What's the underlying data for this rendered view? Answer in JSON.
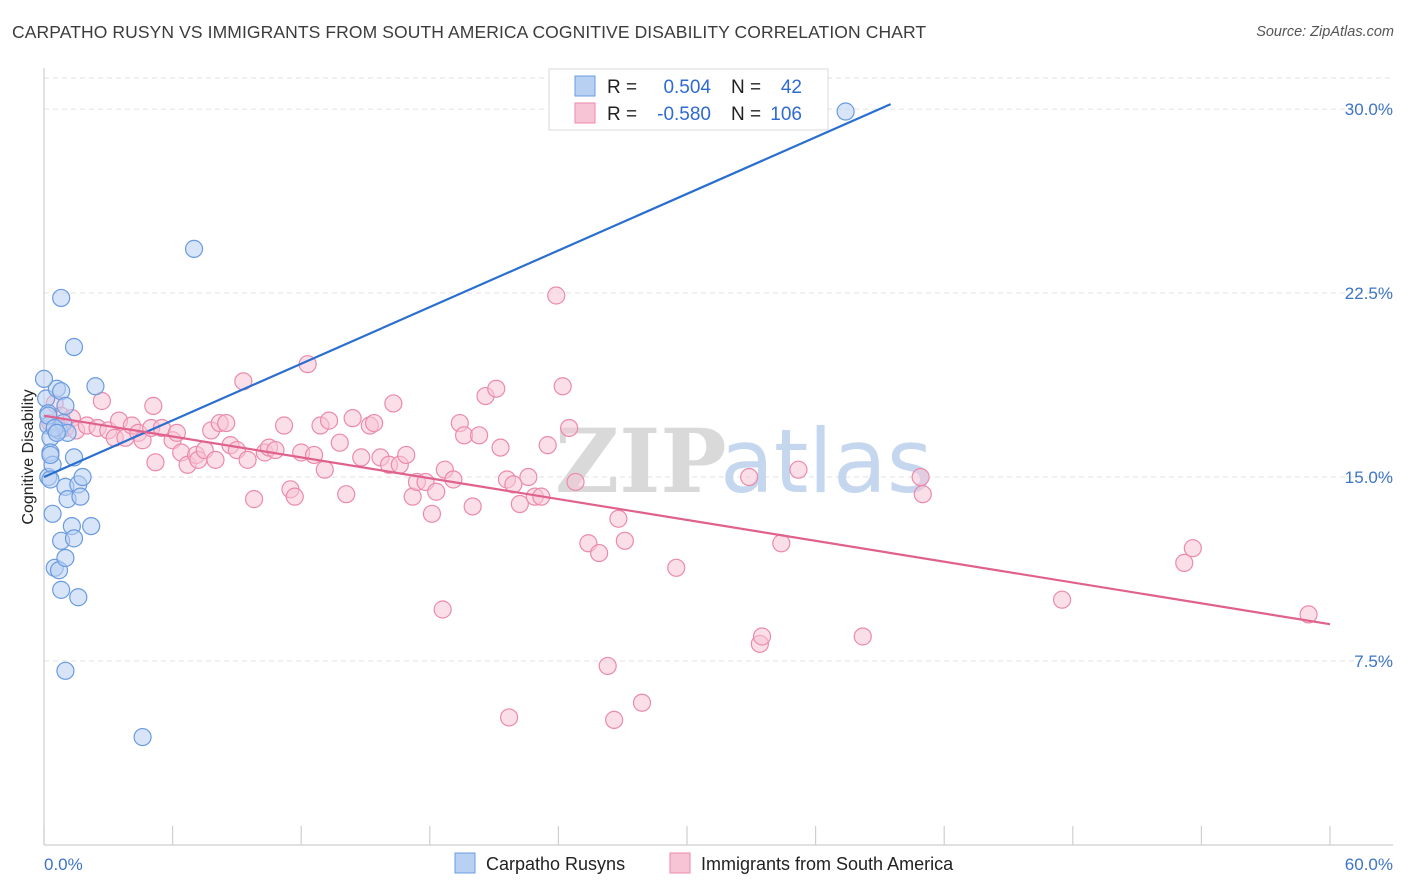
{
  "chart_data": {
    "type": "scatter",
    "title": "CARPATHO RUSYN VS IMMIGRANTS FROM SOUTH AMERICA COGNITIVE DISABILITY CORRELATION CHART",
    "source": "Source: ZipAtlas.com",
    "ylabel": "Cognitive Disability",
    "xlabel": "",
    "xlim": [
      0,
      60
    ],
    "ylim": [
      0,
      32
    ],
    "y_ticks": [
      {
        "value": 7.5,
        "label": "7.5%"
      },
      {
        "value": 15.0,
        "label": "15.0%"
      },
      {
        "value": 22.5,
        "label": "22.5%"
      },
      {
        "value": 30.0,
        "label": "30.0%"
      }
    ],
    "x_tick_values": [
      0,
      6,
      12,
      18,
      24,
      30,
      36,
      42,
      48,
      54,
      60
    ],
    "x_tick_labels": {
      "min": "0.0%",
      "max": "60.0%"
    },
    "watermark": {
      "zip": "ZIP",
      "atlas": "atlas"
    },
    "legend": {
      "r_label": "R =",
      "n_label": "N =",
      "entries": [
        {
          "r": "0.504",
          "n": "42"
        },
        {
          "r": "-0.580",
          "n": "106"
        }
      ]
    },
    "series": [
      {
        "name": "Carpatho Rusyns",
        "color": "#6a9be0",
        "fill": "#b8d0f2",
        "line_color": "#2a6fcf",
        "trend": {
          "x0": 0,
          "y0": 15.0,
          "x1": 39.5,
          "y1": 30.2
        },
        "points": [
          [
            0.1,
            18.2
          ],
          [
            0.2,
            17.6
          ],
          [
            0.2,
            17.1
          ],
          [
            0.3,
            16.6
          ],
          [
            0.2,
            15.0
          ],
          [
            0.3,
            16.0
          ],
          [
            0.4,
            15.5
          ],
          [
            0.6,
            18.6
          ],
          [
            0.7,
            16.9
          ],
          [
            0.8,
            18.5
          ],
          [
            0.9,
            17.2
          ],
          [
            1.0,
            17.9
          ],
          [
            1.1,
            16.8
          ],
          [
            0.3,
            14.9
          ],
          [
            1.0,
            14.6
          ],
          [
            1.4,
            15.8
          ],
          [
            1.1,
            14.1
          ],
          [
            1.6,
            14.7
          ],
          [
            1.7,
            14.2
          ],
          [
            1.8,
            15.0
          ],
          [
            0.4,
            13.5
          ],
          [
            0.8,
            12.4
          ],
          [
            1.3,
            13.0
          ],
          [
            1.4,
            12.5
          ],
          [
            2.2,
            13.0
          ],
          [
            0.5,
            11.3
          ],
          [
            0.7,
            11.2
          ],
          [
            1.0,
            11.7
          ],
          [
            0.8,
            10.4
          ],
          [
            1.6,
            10.1
          ],
          [
            1.0,
            7.1
          ],
          [
            0.8,
            22.3
          ],
          [
            1.4,
            20.3
          ],
          [
            2.4,
            18.7
          ],
          [
            7.0,
            24.3
          ],
          [
            4.6,
            4.4
          ],
          [
            37.4,
            29.9
          ],
          [
            0.0,
            19.0
          ],
          [
            0.2,
            17.5
          ],
          [
            0.5,
            17.0
          ],
          [
            0.3,
            15.9
          ],
          [
            0.6,
            16.8
          ]
        ]
      },
      {
        "name": "Immigrants from South America",
        "color": "#ec8aac",
        "fill": "#f7c4d6",
        "line_color": "#e0608e",
        "trend": {
          "x0": 0,
          "y0": 17.5,
          "x1": 60,
          "y1": 9.0
        },
        "points": [
          [
            0.3,
            17.2
          ],
          [
            0.5,
            18.0
          ],
          [
            0.8,
            17.5
          ],
          [
            1.0,
            17.0
          ],
          [
            1.3,
            17.4
          ],
          [
            1.5,
            16.9
          ],
          [
            2.0,
            17.1
          ],
          [
            2.5,
            17.0
          ],
          [
            2.7,
            18.1
          ],
          [
            3.0,
            16.9
          ],
          [
            3.3,
            16.6
          ],
          [
            3.5,
            17.3
          ],
          [
            3.8,
            16.6
          ],
          [
            4.1,
            17.1
          ],
          [
            4.4,
            16.8
          ],
          [
            4.6,
            16.5
          ],
          [
            5.0,
            17.0
          ],
          [
            5.1,
            17.9
          ],
          [
            5.2,
            15.6
          ],
          [
            5.5,
            17.0
          ],
          [
            6.0,
            16.5
          ],
          [
            6.2,
            16.8
          ],
          [
            6.4,
            16.0
          ],
          [
            6.7,
            15.5
          ],
          [
            7.1,
            15.9
          ],
          [
            7.2,
            15.7
          ],
          [
            7.5,
            16.1
          ],
          [
            7.8,
            16.9
          ],
          [
            8.0,
            15.7
          ],
          [
            8.2,
            17.2
          ],
          [
            8.5,
            17.2
          ],
          [
            8.7,
            16.3
          ],
          [
            9.0,
            16.1
          ],
          [
            9.3,
            18.9
          ],
          [
            9.5,
            15.7
          ],
          [
            9.8,
            14.1
          ],
          [
            10.3,
            16.0
          ],
          [
            10.5,
            16.2
          ],
          [
            10.8,
            16.1
          ],
          [
            11.2,
            17.1
          ],
          [
            11.5,
            14.5
          ],
          [
            11.7,
            14.2
          ],
          [
            12.0,
            16.0
          ],
          [
            12.3,
            19.6
          ],
          [
            12.6,
            15.9
          ],
          [
            12.9,
            17.1
          ],
          [
            13.1,
            15.3
          ],
          [
            13.3,
            17.3
          ],
          [
            13.8,
            16.4
          ],
          [
            14.1,
            14.3
          ],
          [
            14.4,
            17.4
          ],
          [
            14.8,
            15.8
          ],
          [
            15.2,
            17.1
          ],
          [
            15.4,
            17.2
          ],
          [
            15.7,
            15.8
          ],
          [
            16.1,
            15.5
          ],
          [
            16.3,
            18.0
          ],
          [
            16.6,
            15.5
          ],
          [
            16.9,
            15.9
          ],
          [
            17.2,
            14.2
          ],
          [
            17.4,
            14.8
          ],
          [
            17.8,
            14.8
          ],
          [
            18.1,
            13.5
          ],
          [
            18.3,
            14.4
          ],
          [
            18.6,
            9.6
          ],
          [
            18.7,
            15.3
          ],
          [
            19.1,
            14.9
          ],
          [
            19.4,
            17.2
          ],
          [
            19.6,
            16.7
          ],
          [
            20.0,
            13.8
          ],
          [
            20.3,
            16.7
          ],
          [
            20.6,
            18.3
          ],
          [
            21.1,
            18.6
          ],
          [
            21.3,
            16.2
          ],
          [
            21.6,
            14.9
          ],
          [
            21.7,
            5.2
          ],
          [
            21.9,
            14.7
          ],
          [
            22.2,
            13.9
          ],
          [
            22.6,
            15.0
          ],
          [
            22.9,
            14.2
          ],
          [
            23.2,
            14.2
          ],
          [
            23.5,
            16.3
          ],
          [
            23.9,
            22.4
          ],
          [
            24.2,
            18.7
          ],
          [
            24.5,
            17.0
          ],
          [
            24.8,
            14.8
          ],
          [
            25.4,
            12.3
          ],
          [
            25.9,
            11.9
          ],
          [
            26.3,
            7.3
          ],
          [
            26.6,
            5.1
          ],
          [
            26.8,
            13.3
          ],
          [
            27.1,
            12.4
          ],
          [
            27.9,
            5.8
          ],
          [
            29.5,
            11.3
          ],
          [
            32.9,
            15.0
          ],
          [
            33.4,
            8.2
          ],
          [
            33.5,
            8.5
          ],
          [
            34.4,
            12.3
          ],
          [
            35.2,
            15.3
          ],
          [
            38.2,
            8.5
          ],
          [
            40.9,
            15.0
          ],
          [
            41.0,
            14.3
          ],
          [
            47.5,
            10.0
          ],
          [
            53.2,
            11.5
          ],
          [
            53.6,
            12.1
          ],
          [
            59.0,
            9.4
          ]
        ]
      }
    ]
  },
  "colors": {
    "axis": "#cfcfcf",
    "grid": "#e2e2e2",
    "tick_label": "#3d74c4"
  }
}
